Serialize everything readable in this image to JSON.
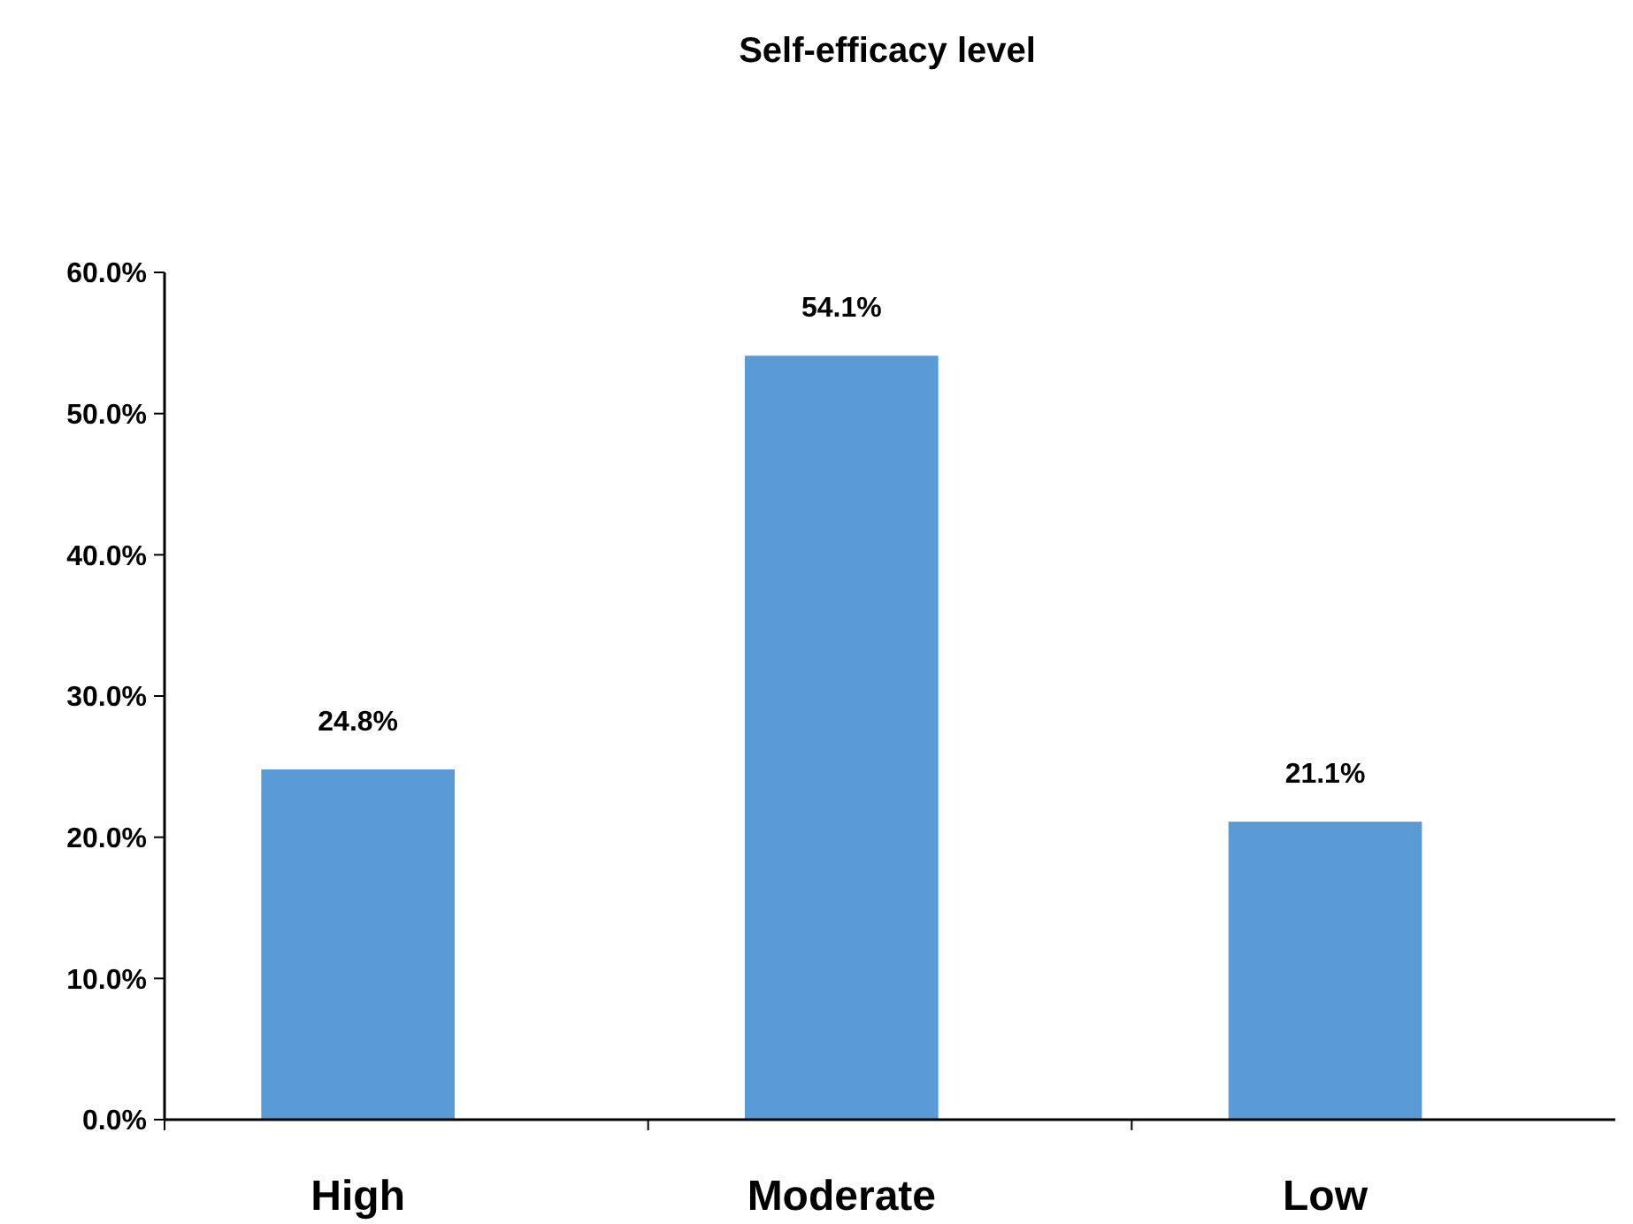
{
  "chart_data": {
    "type": "bar",
    "title": "Self-efficacy level",
    "categories": [
      "High",
      "Moderate",
      "Low"
    ],
    "values": [
      24.8,
      54.1,
      21.1
    ],
    "value_labels": [
      "24.8%",
      "54.1%",
      "21.1%"
    ],
    "color": "#5b9bd5",
    "ylim": [
      0,
      60
    ],
    "yticks": [
      {
        "value": 0,
        "label": "0.0%"
      },
      {
        "value": 10,
        "label": "10.0%"
      },
      {
        "value": 20,
        "label": "20.0%"
      },
      {
        "value": 30,
        "label": "30.0%"
      },
      {
        "value": 40,
        "label": "40.0%"
      },
      {
        "value": 50,
        "label": "50.0%"
      },
      {
        "value": 60,
        "label": "60.0%"
      }
    ],
    "grid": false
  }
}
